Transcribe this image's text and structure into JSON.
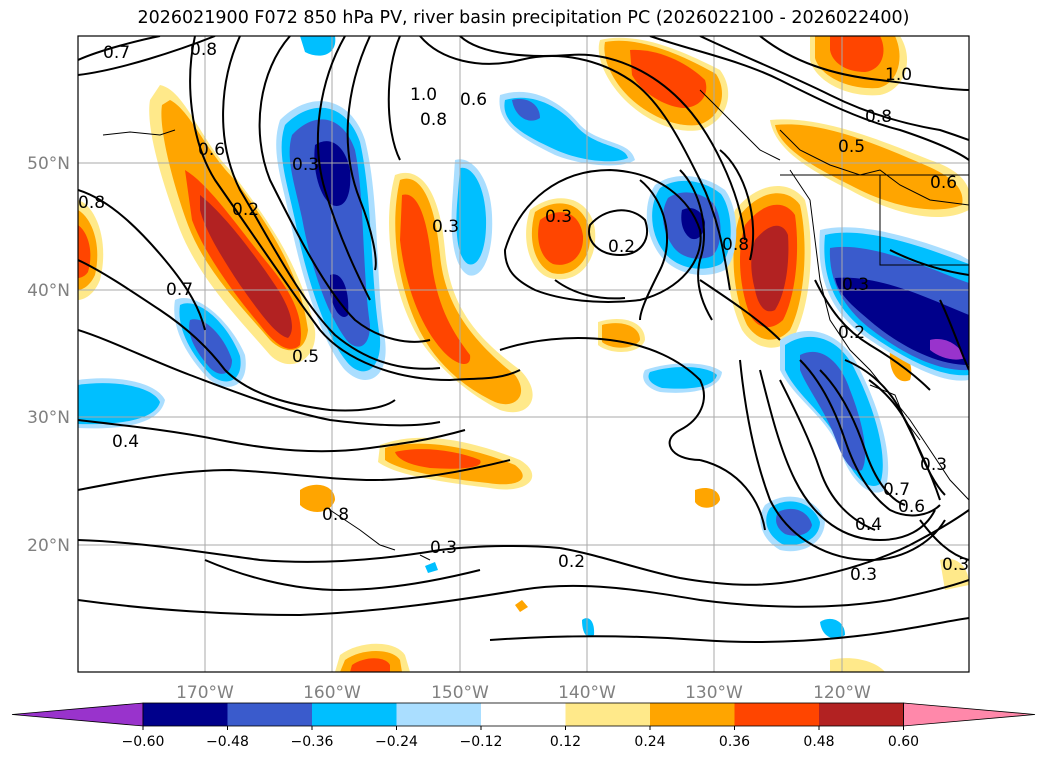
{
  "title": "2026021900 F072 850 hPa PV, river basin precipitation PC (2026022100 - 2026022400)",
  "map": {
    "lon_labels": [
      "170°W",
      "160°W",
      "150°W",
      "140°W",
      "130°W",
      "120°W"
    ],
    "lat_labels": [
      "50°N",
      "40°N",
      "30°N",
      "20°N"
    ],
    "contour_labels": [
      "0.7",
      "0.8",
      "0.6",
      "0.8",
      "1.0",
      "0.8",
      "0.6",
      "1.0",
      "0.8",
      "0.5",
      "0.6",
      "0.3",
      "0.2",
      "0.3",
      "0.8",
      "0.3",
      "0.2",
      "0.7",
      "0.5",
      "0.3",
      "0.2",
      "0.4",
      "0.3",
      "0.2",
      "0.7",
      "0.6",
      "0.4",
      "0.3",
      "0.8",
      "0.3",
      "0.3"
    ]
  },
  "colorbar": {
    "ticks": [
      "−0.60",
      "−0.48",
      "−0.36",
      "−0.24",
      "−0.12",
      "0.12",
      "0.24",
      "0.36",
      "0.48",
      "0.60"
    ],
    "colors": [
      "#9933cc",
      "#00008b",
      "#3a5bcc",
      "#00bfff",
      "#aadeff",
      "#ffffff",
      "#ffe98a",
      "#ffa500",
      "#ff4500",
      "#b22222",
      "#ff88aa"
    ]
  }
}
